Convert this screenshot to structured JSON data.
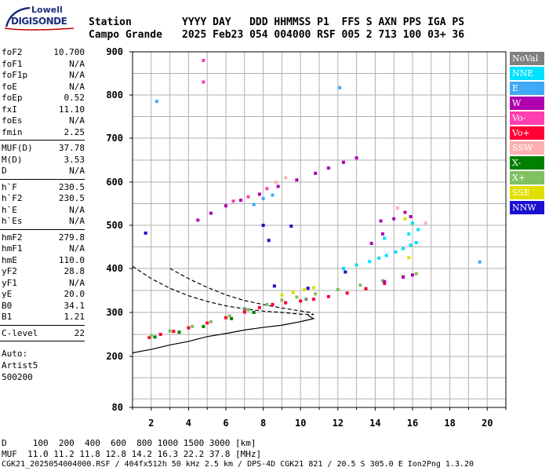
{
  "logo": {
    "top": "Lowell",
    "bottom": "DIGISONDE"
  },
  "header": {
    "line1_left": "Station",
    "line2_left": "Campo Grande",
    "line1_right": "YYYY DAY   DDD HHMMSS P1  FFS S AXN PPS IGA PS",
    "line2_right": "2025 Feb23 054 004000 RSF 005 2 713 100 03+ 36"
  },
  "params_group1": [
    {
      "name": "foF2",
      "value": "10.700"
    },
    {
      "name": "foF1",
      "value": "N/A"
    },
    {
      "name": "foF1p",
      "value": "N/A"
    },
    {
      "name": "foE",
      "value": "N/A"
    },
    {
      "name": "foEp",
      "value": "0.52"
    },
    {
      "name": "fxI",
      "value": "11.10"
    },
    {
      "name": "foEs",
      "value": "N/A"
    },
    {
      "name": "fmin",
      "value": "2.25"
    }
  ],
  "params_group2": [
    {
      "name": "MUF(D)",
      "value": "37.78"
    },
    {
      "name": "M(D)",
      "value": "3.53"
    },
    {
      "name": "D",
      "value": "N/A"
    }
  ],
  "params_group3": [
    {
      "name": "h`F",
      "value": "230.5"
    },
    {
      "name": "h`F2",
      "value": "230.5"
    },
    {
      "name": "h`E",
      "value": "N/A"
    },
    {
      "name": "h`Es",
      "value": "N/A"
    }
  ],
  "params_group4": [
    {
      "name": "hmF2",
      "value": "279.8"
    },
    {
      "name": "hmF1",
      "value": "N/A"
    },
    {
      "name": "hmE",
      "value": "110.0"
    },
    {
      "name": "yF2",
      "value": "28.8"
    },
    {
      "name": "yF1",
      "value": "N/A"
    },
    {
      "name": "yE",
      "value": "20.0"
    },
    {
      "name": "B0",
      "value": "34.1"
    },
    {
      "name": "B1",
      "value": "1.21"
    }
  ],
  "params_group5": [
    {
      "name": "C-level",
      "value": "22"
    }
  ],
  "auto": {
    "label": "Auto:",
    "program": "Artist5",
    "version": "500200"
  },
  "legend": [
    {
      "label": "NoVal",
      "color": "#808080"
    },
    {
      "label": "NNE",
      "color": "#00e0ff"
    },
    {
      "label": "E",
      "color": "#3fa9f5"
    },
    {
      "label": "W",
      "color": "#b000b0"
    },
    {
      "label": "Vo-",
      "color": "#ff3fb0"
    },
    {
      "label": "Vo+",
      "color": "#ff0033"
    },
    {
      "label": "SSW",
      "color": "#ffb0b0"
    },
    {
      "label": "X-",
      "color": "#008000"
    },
    {
      "label": "X+",
      "color": "#80c060"
    },
    {
      "label": "SSE",
      "color": "#e0e000"
    },
    {
      "label": "NNW",
      "color": "#1a10d0"
    }
  ],
  "chart_data": {
    "type": "scatter",
    "xlabel": "",
    "ylabel": "",
    "xlim": [
      1,
      21
    ],
    "ylim": [
      80,
      900
    ],
    "x_ticks": [
      "2",
      "4",
      "6",
      "8",
      "10",
      "12",
      "14",
      "16",
      "18",
      "20"
    ],
    "y_ticks": [
      "80",
      "200",
      "300",
      "400",
      "500",
      "600",
      "700",
      "800",
      "900"
    ],
    "grid": true,
    "series": [
      {
        "name": "Vo+",
        "color": "#ff0033",
        "points": [
          [
            1.9,
            243
          ],
          [
            2.5,
            250
          ],
          [
            3.2,
            257
          ],
          [
            4.0,
            265
          ],
          [
            5.0,
            276
          ],
          [
            6.0,
            288
          ],
          [
            7.0,
            301
          ],
          [
            7.8,
            311
          ],
          [
            8.5,
            318
          ],
          [
            9.2,
            322
          ],
          [
            10.0,
            326
          ],
          [
            10.7,
            330
          ],
          [
            11.5,
            336
          ],
          [
            12.5,
            344
          ],
          [
            13.5,
            354
          ],
          [
            14.5,
            366
          ]
        ]
      },
      {
        "name": "X+",
        "color": "#80c060",
        "points": [
          [
            2.0,
            247
          ],
          [
            3.0,
            258
          ],
          [
            4.2,
            268
          ],
          [
            5.2,
            279
          ],
          [
            6.2,
            292
          ],
          [
            7.2,
            306
          ],
          [
            8.2,
            318
          ],
          [
            9.0,
            328
          ],
          [
            9.8,
            335
          ],
          [
            10.8,
            342
          ],
          [
            12.0,
            352
          ],
          [
            13.2,
            362
          ],
          [
            14.4,
            372
          ],
          [
            15.5,
            382
          ],
          [
            16.2,
            388
          ]
        ]
      },
      {
        "name": "X-",
        "color": "#008000",
        "points": [
          [
            2.2,
            244
          ],
          [
            3.5,
            255
          ],
          [
            4.8,
            268
          ],
          [
            6.3,
            286
          ],
          [
            7.5,
            300
          ]
        ]
      },
      {
        "name": "W",
        "color": "#b000b0",
        "points": [
          [
            4.5,
            512
          ],
          [
            5.2,
            528
          ],
          [
            6.0,
            545
          ],
          [
            6.8,
            558
          ],
          [
            7.8,
            572
          ],
          [
            8.8,
            590
          ],
          [
            9.8,
            605
          ],
          [
            10.8,
            620
          ],
          [
            11.5,
            632
          ],
          [
            12.3,
            645
          ],
          [
            13.0,
            655
          ],
          [
            14.5,
            370
          ],
          [
            15.5,
            380
          ],
          [
            16.0,
            385
          ],
          [
            14.3,
            510
          ],
          [
            15.0,
            515
          ],
          [
            15.9,
            520
          ],
          [
            15.6,
            530
          ],
          [
            13.8,
            458
          ],
          [
            14.4,
            480
          ]
        ]
      },
      {
        "name": "NNE",
        "color": "#00e0ff",
        "points": [
          [
            12.3,
            400
          ],
          [
            13.0,
            408
          ],
          [
            13.7,
            416
          ],
          [
            14.2,
            424
          ],
          [
            14.6,
            430
          ],
          [
            15.1,
            438
          ],
          [
            15.5,
            446
          ],
          [
            15.9,
            454
          ],
          [
            16.2,
            460
          ],
          [
            14.5,
            470
          ],
          [
            15.8,
            480
          ],
          [
            16.3,
            490
          ],
          [
            16.0,
            505
          ]
        ]
      },
      {
        "name": "E",
        "color": "#3fa9f5",
        "points": [
          [
            7.5,
            548
          ],
          [
            8.0,
            562
          ],
          [
            8.5,
            570
          ],
          [
            12.1,
            817
          ],
          [
            2.3,
            785
          ],
          [
            19.6,
            415
          ]
        ]
      },
      {
        "name": "SSE",
        "color": "#e0e000",
        "points": [
          [
            9.0,
            340
          ],
          [
            9.6,
            345
          ],
          [
            10.2,
            352
          ],
          [
            10.7,
            356
          ],
          [
            15.8,
            425
          ],
          [
            15.6,
            515
          ]
        ]
      },
      {
        "name": "Vo-",
        "color": "#ff3fb0",
        "points": [
          [
            6.4,
            556
          ],
          [
            7.2,
            566
          ],
          [
            8.2,
            585
          ],
          [
            4.8,
            880
          ],
          [
            4.8,
            830
          ]
        ]
      },
      {
        "name": "NNW",
        "color": "#1a10d0",
        "points": [
          [
            1.7,
            482
          ],
          [
            8.0,
            500
          ],
          [
            8.3,
            465
          ],
          [
            9.5,
            498
          ],
          [
            8.6,
            360
          ],
          [
            10.4,
            355
          ],
          [
            12.4,
            392
          ]
        ]
      },
      {
        "name": "SSW",
        "color": "#ffb0b0",
        "points": [
          [
            8.7,
            600
          ],
          [
            9.2,
            610
          ],
          [
            15.2,
            540
          ],
          [
            16.7,
            505
          ]
        ]
      },
      {
        "name": "NoVal",
        "color": "#808080",
        "points": [
          [
            10.3,
            330
          ],
          [
            7.0,
            308
          ]
        ]
      }
    ],
    "profile_dashed": [
      [
        1.0,
        405
      ],
      [
        2.0,
        377
      ],
      [
        3.0,
        355
      ],
      [
        4.0,
        338
      ],
      [
        5.0,
        325
      ],
      [
        6.0,
        315
      ],
      [
        7.0,
        308
      ],
      [
        8.0,
        303
      ],
      [
        9.0,
        300
      ],
      [
        10.0,
        296
      ],
      [
        10.7,
        295
      ],
      [
        10.5,
        300
      ],
      [
        9.0,
        310
      ],
      [
        8.0,
        318
      ],
      [
        7.0,
        327
      ],
      [
        6.0,
        340
      ],
      [
        5.0,
        357
      ],
      [
        4.0,
        377
      ],
      [
        3.0,
        400
      ]
    ],
    "trace_solid": [
      [
        1.0,
        208
      ],
      [
        2.0,
        216
      ],
      [
        3.0,
        226
      ],
      [
        4.0,
        234
      ],
      [
        5.0,
        245
      ],
      [
        6.0,
        252
      ],
      [
        7.0,
        260
      ],
      [
        8.0,
        266
      ],
      [
        9.0,
        271
      ],
      [
        10.0,
        279
      ],
      [
        10.7,
        286
      ],
      [
        10.4,
        293
      ]
    ]
  },
  "footer": {
    "d_line": "D     100  200  400  600  800 1000 1500 3000 [km]",
    "muf_line": "MUF  11.0 11.2 11.8 12.8 14.2 16.3 22.2 37.8 [MHz]",
    "info_line": "CGK21_2025054004000.RSF / 404fx512h 50 kHz 2.5 km / DPS-4D CGK21 821 / 20.5 S 305.0 E Ion2Png 1.3.20"
  }
}
